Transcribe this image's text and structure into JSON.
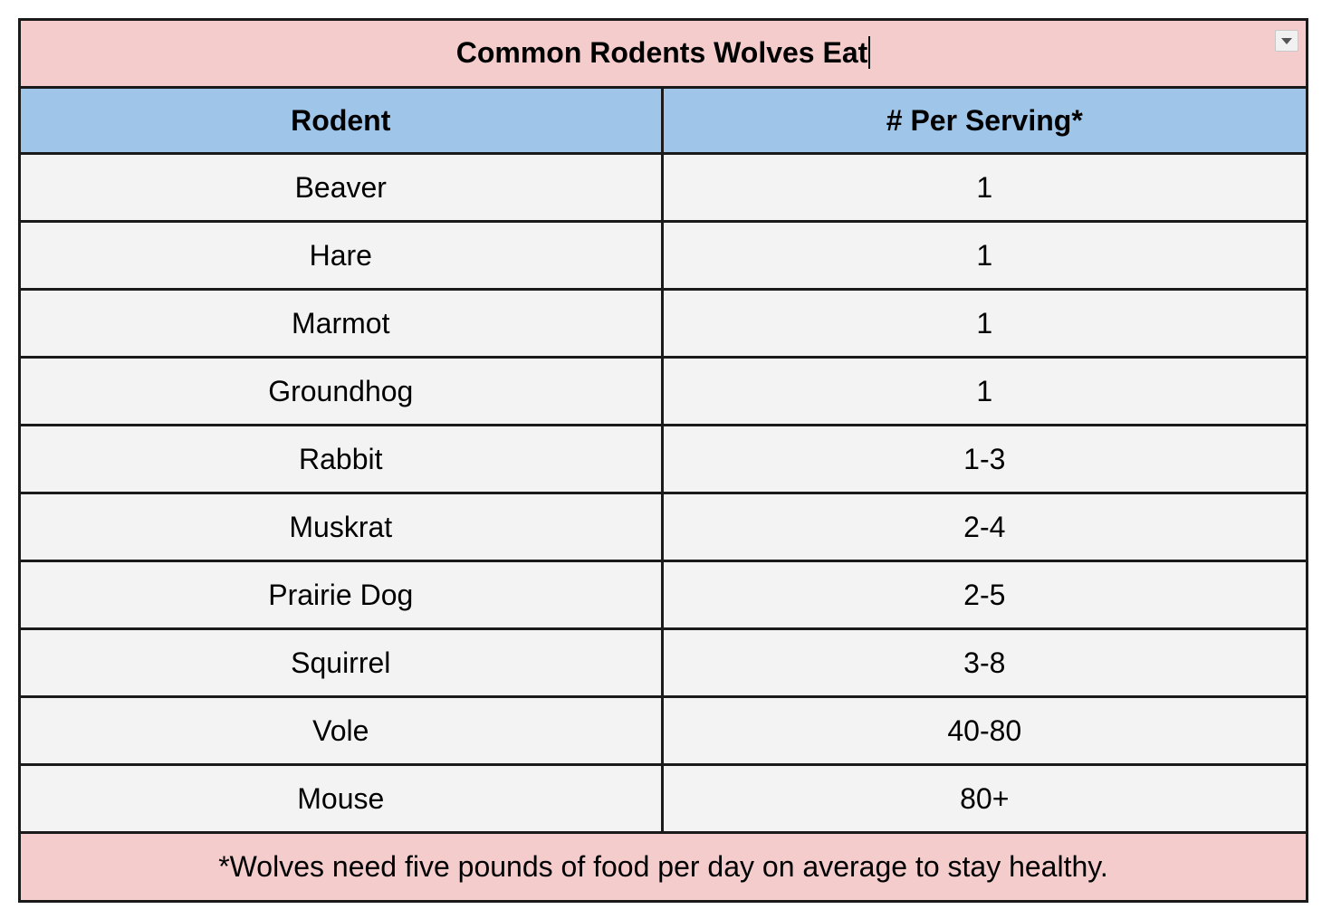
{
  "colors": {
    "title_bg": "#f4cccc",
    "header_bg": "#9fc5e8",
    "row_bg": "#f3f3f3",
    "footer_bg": "#f4cccc"
  },
  "table": {
    "title": "Common Rodents Wolves Eat",
    "filter_icon": "dropdown-arrow-icon",
    "headers": [
      "Rodent",
      "# Per Serving*"
    ],
    "rows": [
      [
        "Beaver",
        "1"
      ],
      [
        "Hare",
        "1"
      ],
      [
        "Marmot",
        "1"
      ],
      [
        "Groundhog",
        "1"
      ],
      [
        "Rabbit",
        "1-3"
      ],
      [
        "Muskrat",
        "2-4"
      ],
      [
        "Prairie Dog",
        "2-5"
      ],
      [
        "Squirrel",
        "3-8"
      ],
      [
        "Vole",
        "40-80"
      ],
      [
        "Mouse",
        "80+"
      ]
    ],
    "footnote": "*Wolves need five pounds of food per day on average to stay healthy."
  }
}
